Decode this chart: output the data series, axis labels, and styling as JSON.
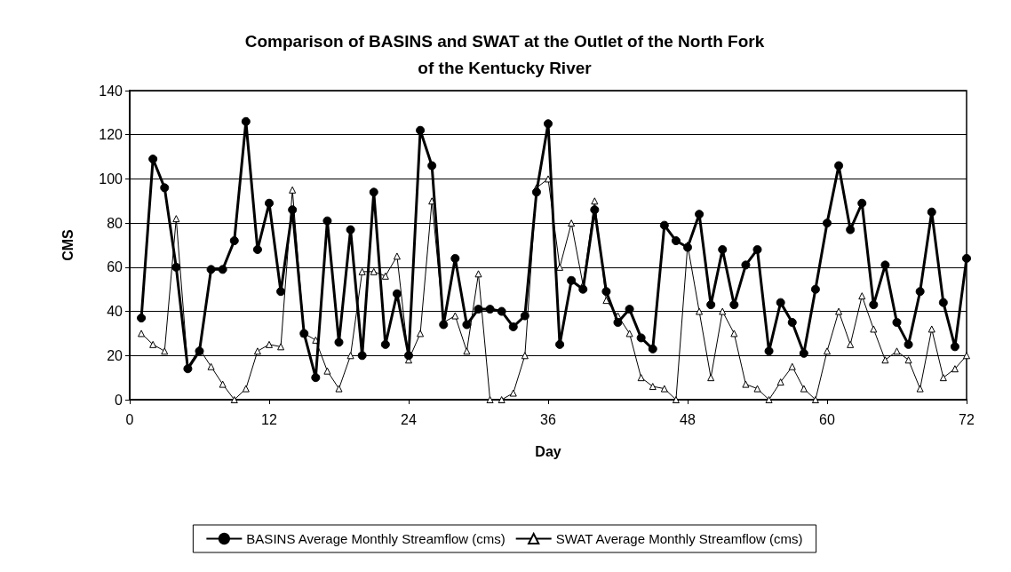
{
  "chart_data": {
    "type": "line",
    "title": "Comparison of BASINS and SWAT at the Outlet of the North Fork\nof the Kentucky River",
    "xlabel": "Day",
    "ylabel": "CMS",
    "x": [
      1,
      2,
      3,
      4,
      5,
      6,
      7,
      8,
      9,
      10,
      11,
      12,
      13,
      14,
      15,
      16,
      17,
      18,
      19,
      20,
      21,
      22,
      23,
      24,
      25,
      26,
      27,
      28,
      29,
      30,
      31,
      32,
      33,
      34,
      35,
      36,
      37,
      38,
      39,
      40,
      41,
      42,
      43,
      44,
      45,
      46,
      47,
      48,
      49,
      50,
      51,
      52,
      53,
      54,
      55,
      56,
      57,
      58,
      59,
      60,
      61,
      62,
      63,
      64,
      65,
      66,
      67,
      68,
      69,
      70,
      71,
      72
    ],
    "series": [
      {
        "name": "BASINS Average Monthly Streamflow (cms)",
        "color": "#000000",
        "marker": "circle",
        "values": [
          37,
          109,
          96,
          60,
          14,
          22,
          59,
          59,
          72,
          126,
          68,
          89,
          49,
          86,
          30,
          10,
          81,
          26,
          77,
          20,
          94,
          25,
          48,
          20,
          122,
          106,
          34,
          64,
          34,
          41,
          41,
          40,
          33,
          38,
          94,
          125,
          25,
          54,
          50,
          86,
          49,
          35,
          41,
          28,
          23,
          79,
          72,
          69,
          84,
          43,
          68,
          43,
          61,
          68,
          22,
          44,
          35,
          21,
          50,
          80,
          106,
          77,
          89,
          43,
          61,
          35,
          25,
          49,
          85,
          44,
          24,
          64
        ]
      },
      {
        "name": "SWAT Average Monthly Streamflow (cms)",
        "color": "#000000",
        "marker": "triangle",
        "values": [
          30,
          25,
          22,
          82,
          15,
          23,
          15,
          7,
          0,
          5,
          22,
          25,
          24,
          95,
          30,
          27,
          13,
          5,
          20,
          58,
          58,
          56,
          65,
          18,
          30,
          90,
          35,
          38,
          22,
          57,
          0,
          0,
          3,
          20,
          96,
          100,
          60,
          80,
          52,
          90,
          45,
          38,
          30,
          10,
          6,
          5,
          0,
          70,
          40,
          10,
          40,
          30,
          7,
          5,
          0,
          8,
          15,
          5,
          0,
          22,
          40,
          25,
          47,
          32,
          18,
          22,
          18,
          5,
          32,
          10,
          14,
          20
        ]
      }
    ],
    "xlim": [
      0,
      72
    ],
    "xticks": [
      0,
      12,
      24,
      36,
      48,
      60,
      72
    ],
    "ylim": [
      0,
      140
    ],
    "yticks": [
      0,
      20,
      40,
      60,
      80,
      100,
      120,
      140
    ],
    "grid": "y",
    "legend": "bottom"
  }
}
